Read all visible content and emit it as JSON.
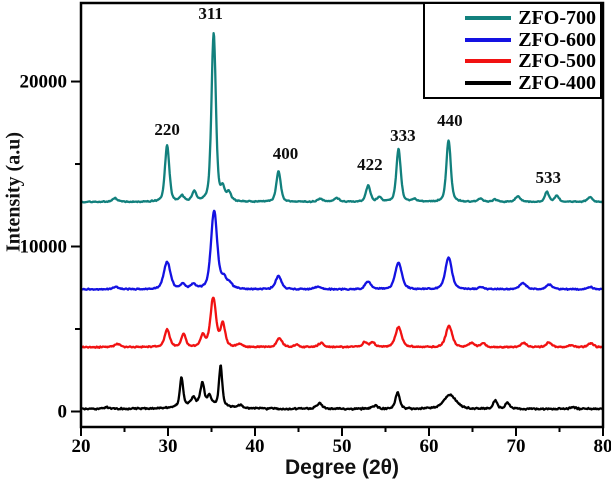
{
  "chart_data": {
    "type": "line",
    "title": "",
    "xlabel": "Degree (2θ)",
    "ylabel": "Intensity (a.u)",
    "xlim": [
      20,
      80
    ],
    "ylim": [
      -940,
      24760
    ],
    "x_major_ticks": [
      20,
      30,
      40,
      50,
      60,
      70,
      80
    ],
    "x_minor_ticks": [
      25,
      35,
      45,
      55,
      65,
      75
    ],
    "y_major_ticks": [
      0,
      10000,
      20000
    ],
    "y_minor_ticks": [
      5000,
      15000
    ],
    "grid": false,
    "legend_position": "top-right",
    "peak_annotations": [
      {
        "label": "220",
        "x": 29.9,
        "y": 16750
      },
      {
        "label": "311",
        "x": 34.9,
        "y": 23800
      },
      {
        "label": "400",
        "x": 43.5,
        "y": 15300
      },
      {
        "label": "422",
        "x": 53.2,
        "y": 14650
      },
      {
        "label": "333",
        "x": 57.0,
        "y": 16400
      },
      {
        "label": "440",
        "x": 62.4,
        "y": 17300
      },
      {
        "label": "533",
        "x": 73.7,
        "y": 13850
      }
    ],
    "series": [
      {
        "name": "ZFO-700",
        "color": "#12807d",
        "baseline": 12700,
        "noise": 80,
        "peaks": [
          [
            23.9,
            220,
            0.35
          ],
          [
            29.9,
            3400,
            0.3
          ],
          [
            31.6,
            330,
            0.3
          ],
          [
            33.0,
            580,
            0.3
          ],
          [
            35.25,
            10200,
            0.3
          ],
          [
            36.3,
            700,
            0.28
          ],
          [
            37.0,
            520,
            0.28
          ],
          [
            42.7,
            1850,
            0.3
          ],
          [
            47.5,
            190,
            0.35
          ],
          [
            49.4,
            240,
            0.35
          ],
          [
            53.0,
            980,
            0.3
          ],
          [
            54.3,
            290,
            0.3
          ],
          [
            56.5,
            3200,
            0.3
          ],
          [
            58.3,
            150,
            0.3
          ],
          [
            62.25,
            3750,
            0.3
          ],
          [
            65.9,
            190,
            0.35
          ],
          [
            67.6,
            140,
            0.35
          ],
          [
            70.2,
            340,
            0.35
          ],
          [
            73.55,
            600,
            0.28
          ],
          [
            74.7,
            380,
            0.28
          ],
          [
            78.5,
            290,
            0.35
          ]
        ]
      },
      {
        "name": "ZFO-600",
        "color": "#1412e2",
        "baseline": 7400,
        "noise": 90,
        "peaks": [
          [
            24.0,
            140,
            0.4
          ],
          [
            29.9,
            1650,
            0.45
          ],
          [
            31.7,
            280,
            0.35
          ],
          [
            32.9,
            260,
            0.35
          ],
          [
            35.3,
            4750,
            0.42
          ],
          [
            36.4,
            600,
            0.35
          ],
          [
            37.1,
            330,
            0.35
          ],
          [
            42.7,
            800,
            0.4
          ],
          [
            47.2,
            160,
            0.4
          ],
          [
            53.0,
            470,
            0.4
          ],
          [
            56.5,
            1600,
            0.45
          ],
          [
            62.25,
            1900,
            0.45
          ],
          [
            66.0,
            130,
            0.4
          ],
          [
            70.8,
            380,
            0.45
          ],
          [
            73.8,
            300,
            0.4
          ],
          [
            78.5,
            140,
            0.4
          ]
        ]
      },
      {
        "name": "ZFO-500",
        "color": "#f11212",
        "baseline": 3900,
        "noise": 100,
        "peaks": [
          [
            24.2,
            190,
            0.4
          ],
          [
            29.9,
            1050,
            0.35
          ],
          [
            31.8,
            780,
            0.3
          ],
          [
            34.0,
            680,
            0.32
          ],
          [
            35.2,
            2950,
            0.38
          ],
          [
            36.3,
            1400,
            0.32
          ],
          [
            38.2,
            150,
            0.35
          ],
          [
            42.8,
            520,
            0.38
          ],
          [
            44.8,
            130,
            0.35
          ],
          [
            47.6,
            240,
            0.38
          ],
          [
            52.6,
            290,
            0.33
          ],
          [
            53.5,
            290,
            0.33
          ],
          [
            56.5,
            1200,
            0.42
          ],
          [
            62.3,
            1300,
            0.42
          ],
          [
            64.9,
            230,
            0.35
          ],
          [
            66.2,
            230,
            0.35
          ],
          [
            70.9,
            240,
            0.38
          ],
          [
            73.8,
            290,
            0.35
          ],
          [
            76.3,
            130,
            0.35
          ],
          [
            78.6,
            240,
            0.35
          ]
        ]
      },
      {
        "name": "ZFO-400",
        "color": "#000000",
        "baseline": 150,
        "noise": 120,
        "peaks": [
          [
            22.9,
            90,
            0.5
          ],
          [
            34.0,
            330,
            2.8
          ],
          [
            31.55,
            1700,
            0.22
          ],
          [
            32.9,
            420,
            0.26
          ],
          [
            33.95,
            1230,
            0.26
          ],
          [
            34.75,
            480,
            0.26
          ],
          [
            36.05,
            2400,
            0.22
          ],
          [
            38.3,
            160,
            0.3
          ],
          [
            47.4,
            330,
            0.4
          ],
          [
            53.8,
            190,
            0.4
          ],
          [
            56.4,
            980,
            0.3
          ],
          [
            62.4,
            850,
            0.85
          ],
          [
            67.6,
            520,
            0.28
          ],
          [
            69.0,
            360,
            0.28
          ],
          [
            76.5,
            100,
            0.4
          ]
        ]
      }
    ]
  }
}
